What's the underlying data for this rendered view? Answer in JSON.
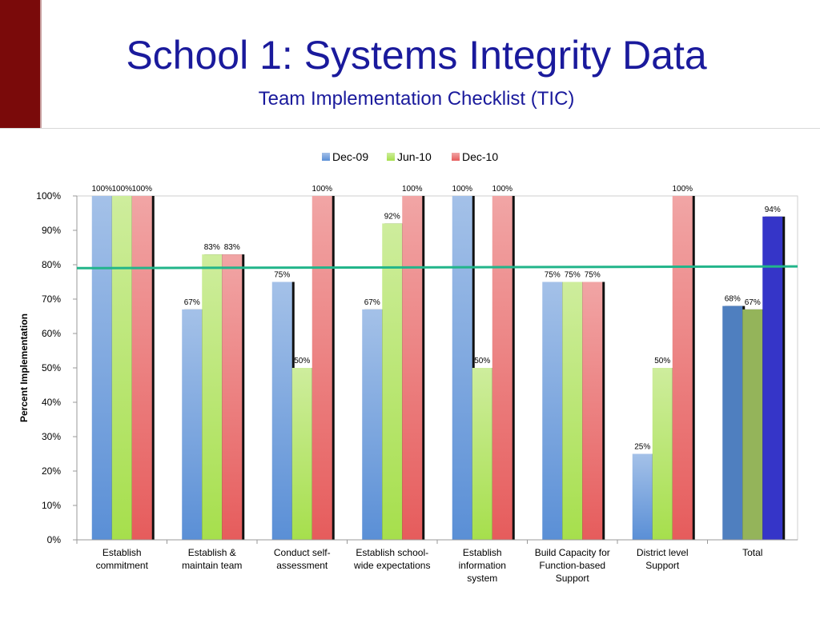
{
  "slide": {
    "title": "School 1: Systems Integrity Data",
    "subtitle": "Team Implementation Checklist (TIC)"
  },
  "colors": {
    "side_block": "#7a0a0a",
    "title": "#1a1a9c",
    "target_line": "#22b58a"
  },
  "chart_data": {
    "type": "bar",
    "title": "",
    "xlabel": "",
    "ylabel": "Percent Implementation",
    "ylim": [
      0,
      100
    ],
    "yticks": [
      "0%",
      "10%",
      "20%",
      "30%",
      "40%",
      "50%",
      "60%",
      "70%",
      "80%",
      "90%",
      "100%"
    ],
    "grid": false,
    "legend_position": "top",
    "categories": [
      [
        "Establish",
        "commitment"
      ],
      [
        "Establish &",
        "maintain team"
      ],
      [
        "Conduct self-",
        "assessment"
      ],
      [
        "Establish school-",
        "wide expectations"
      ],
      [
        "Establish",
        "information",
        "system"
      ],
      [
        "Build Capacity for",
        "Function-based",
        "Support"
      ],
      [
        "District level",
        "Support"
      ],
      [
        "Total"
      ]
    ],
    "series": [
      {
        "name": "Dec-09",
        "color": "#5a8fd6",
        "values": [
          100,
          67,
          75,
          67,
          100,
          75,
          25,
          68
        ],
        "labels": [
          "100%",
          "67%",
          "75%",
          "67%",
          "100%",
          "75%",
          "25%",
          "68%"
        ]
      },
      {
        "name": "Jun-10",
        "color": "#a6df4c",
        "values": [
          100,
          83,
          50,
          92,
          50,
          75,
          50,
          67
        ],
        "labels": [
          "100%",
          "83%",
          "50%",
          "92%",
          "50%",
          "75%",
          "50%",
          "67%"
        ]
      },
      {
        "name": "Dec-10",
        "color": "#e65c5c",
        "values": [
          100,
          83,
          100,
          100,
          100,
          75,
          100,
          94
        ],
        "labels": [
          "100%",
          "83%",
          "100%",
          "100%",
          "100%",
          "75%",
          "100%",
          "94%"
        ]
      }
    ],
    "total_colors": [
      "#4f7fbf",
      "#94b45a",
      "#3535c8"
    ],
    "target_line": {
      "from": 79,
      "to": 79.5
    }
  }
}
